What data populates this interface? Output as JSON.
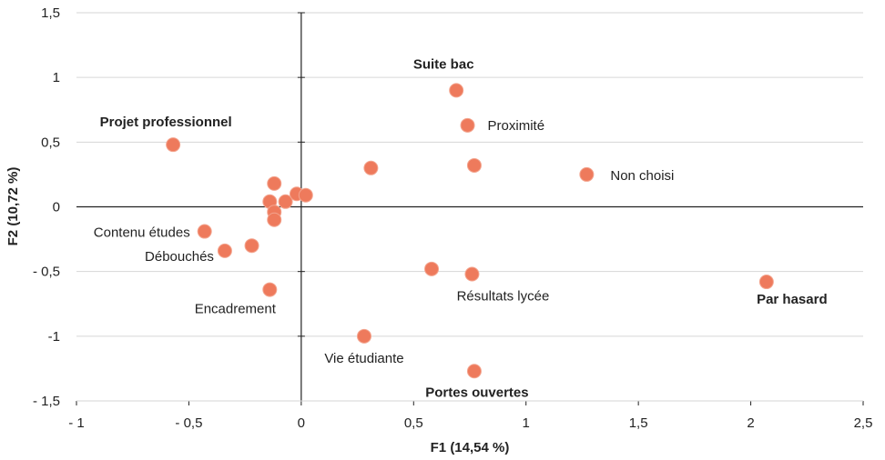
{
  "chart_data": {
    "type": "scatter",
    "xlabel": "F1 (14,54 %)",
    "ylabel": "F2 (10,72 %)",
    "xlim": [
      -1,
      2.5
    ],
    "ylim": [
      -1.5,
      1.5
    ],
    "x_ticks": [
      {
        "value": -1,
        "label": "- 1"
      },
      {
        "value": -0.5,
        "label": "- 0,5"
      },
      {
        "value": 0,
        "label": "0"
      },
      {
        "value": 0.5,
        "label": "0,5"
      },
      {
        "value": 1,
        "label": "1"
      },
      {
        "value": 1.5,
        "label": "1,5"
      },
      {
        "value": 2,
        "label": "2"
      },
      {
        "value": 2.5,
        "label": "2,5"
      }
    ],
    "y_ticks": [
      {
        "value": 1.5,
        "label": "1,5"
      },
      {
        "value": 1,
        "label": "1"
      },
      {
        "value": 0.5,
        "label": "0,5"
      },
      {
        "value": 0,
        "label": "0"
      },
      {
        "value": -0.5,
        "label": "- 0,5"
      },
      {
        "value": -1,
        "label": "-1"
      },
      {
        "value": -1.5,
        "label": "- 1,5"
      }
    ],
    "grid": "horizontal",
    "point_color": "#ee7a5c",
    "points": [
      {
        "x": -0.57,
        "y": 0.48,
        "label": "Projet professionnel",
        "bold": true
      },
      {
        "x": 0.69,
        "y": 0.9,
        "label": "Suite bac",
        "bold": true
      },
      {
        "x": 0.74,
        "y": 0.63,
        "label": "Proximité",
        "bold": false
      },
      {
        "x": 0.77,
        "y": 0.32,
        "label": "",
        "bold": false
      },
      {
        "x": 0.31,
        "y": 0.3,
        "label": "",
        "bold": false
      },
      {
        "x": 1.27,
        "y": 0.25,
        "label": "Non choisi",
        "bold": false
      },
      {
        "x": -0.43,
        "y": -0.19,
        "label": "Contenu études",
        "bold": false
      },
      {
        "x": -0.34,
        "y": -0.34,
        "label": "Débouchés",
        "bold": false
      },
      {
        "x": -0.22,
        "y": -0.3,
        "label": "",
        "bold": false
      },
      {
        "x": -0.14,
        "y": -0.64,
        "label": "Encadrement",
        "bold": false
      },
      {
        "x": -0.12,
        "y": 0.18,
        "label": "",
        "bold": false
      },
      {
        "x": -0.14,
        "y": 0.04,
        "label": "",
        "bold": false
      },
      {
        "x": -0.12,
        "y": -0.04,
        "label": "",
        "bold": false
      },
      {
        "x": -0.12,
        "y": -0.1,
        "label": "",
        "bold": false
      },
      {
        "x": -0.07,
        "y": 0.04,
        "label": "",
        "bold": false
      },
      {
        "x": -0.02,
        "y": 0.1,
        "label": "",
        "bold": false
      },
      {
        "x": 0.02,
        "y": 0.09,
        "label": "",
        "bold": false
      },
      {
        "x": 0.58,
        "y": -0.48,
        "label": "",
        "bold": false
      },
      {
        "x": 0.76,
        "y": -0.52,
        "label": "Résultats lycée",
        "bold": false
      },
      {
        "x": 0.28,
        "y": -1.0,
        "label": "Vie étudiante",
        "bold": false
      },
      {
        "x": 0.77,
        "y": -1.27,
        "label": "Portes ouvertes",
        "bold": true
      },
      {
        "x": 2.07,
        "y": -0.58,
        "label": "Par hasard",
        "bold": true
      }
    ]
  }
}
